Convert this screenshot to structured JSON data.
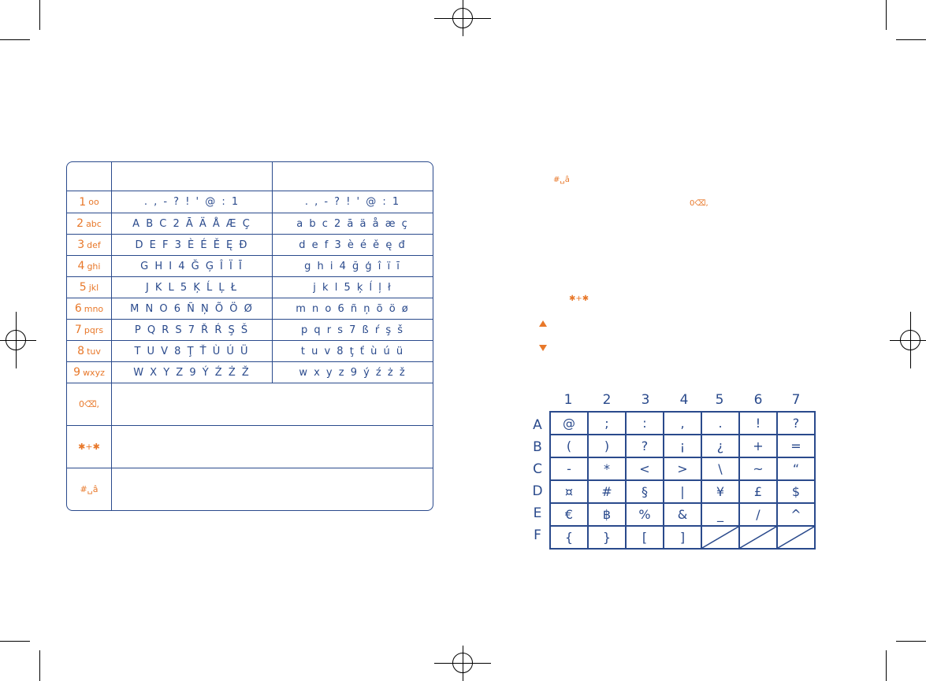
{
  "keypad_table": {
    "header": {
      "key": "",
      "upper": "",
      "lower": ""
    },
    "rows": [
      {
        "key_num": "1",
        "key_letters": "oo",
        "upper": ". , - ? ! ' @ : 1",
        "lower": ". , - ? ! ' @ : 1"
      },
      {
        "key_num": "2",
        "key_letters": "abc",
        "upper": "A B C 2 Ā Ä Å Æ Ç",
        "lower": "a b c 2 ā ä å æ ç"
      },
      {
        "key_num": "3",
        "key_letters": "def",
        "upper": "D E F 3 È É Ě Ę Đ",
        "lower": "d e f 3 è é ě ę đ"
      },
      {
        "key_num": "4",
        "key_letters": "ghi",
        "upper": "G H I 4 Ğ Ģ Î Ï Ī",
        "lower": "g h i 4 ğ ģ î ï ī"
      },
      {
        "key_num": "5",
        "key_letters": "jkl",
        "upper": "J K L 5 Ķ Ĺ Ļ Ł",
        "lower": "j k l 5 ķ ĺ ļ ł"
      },
      {
        "key_num": "6",
        "key_letters": "mno",
        "upper": "M N O 6 Ñ Ņ Õ Ö Ø",
        "lower": "m n o 6 ñ ņ õ ö ø"
      },
      {
        "key_num": "7",
        "key_letters": "pqrs",
        "upper": "P Q R S 7 Ř Ŕ Ş Š",
        "lower": "p q r s 7 ß ŕ ş š"
      },
      {
        "key_num": "8",
        "key_letters": "tuv",
        "upper": "T U V 8 Ţ Ť Ù Ú Ü",
        "lower": "t u v 8 ţ ť ù ú ü"
      },
      {
        "key_num": "9",
        "key_letters": "wxyz",
        "upper": "W X Y Z 9 Ý Ź Ż Ž",
        "lower": "w x y z 9 ý ź ż ž"
      }
    ],
    "extra_keys": [
      {
        "label": "0⌫,",
        "desc": ""
      },
      {
        "label": "✱+✱",
        "desc": ""
      },
      {
        "label": "#␣â",
        "desc": ""
      }
    ]
  },
  "right_page": {
    "icon_hash": "#␣â",
    "icon_zero": "0⌫,",
    "icon_star": "✱+✱"
  },
  "symbol_grid": {
    "columns": [
      "1",
      "2",
      "3",
      "4",
      "5",
      "6",
      "7"
    ],
    "rows": [
      {
        "label": "A",
        "cells": [
          "@",
          ";",
          ":",
          ",",
          ".",
          "!",
          "?"
        ]
      },
      {
        "label": "B",
        "cells": [
          "(",
          ")",
          "?",
          "¡",
          "¿",
          "+",
          "="
        ]
      },
      {
        "label": "C",
        "cells": [
          "-",
          "*",
          "<",
          ">",
          "\\",
          "~",
          "“"
        ]
      },
      {
        "label": "D",
        "cells": [
          "¤",
          "#",
          "§",
          "|",
          "¥",
          "£",
          "$"
        ]
      },
      {
        "label": "E",
        "cells": [
          "€",
          "฿",
          "%",
          "&",
          "_",
          "/",
          "^"
        ]
      },
      {
        "label": "F",
        "cells": [
          "{",
          "}",
          "[",
          "]",
          "",
          "",
          ""
        ]
      }
    ]
  },
  "colors": {
    "ink": "#2a4a8c",
    "accent": "#e8782a"
  }
}
